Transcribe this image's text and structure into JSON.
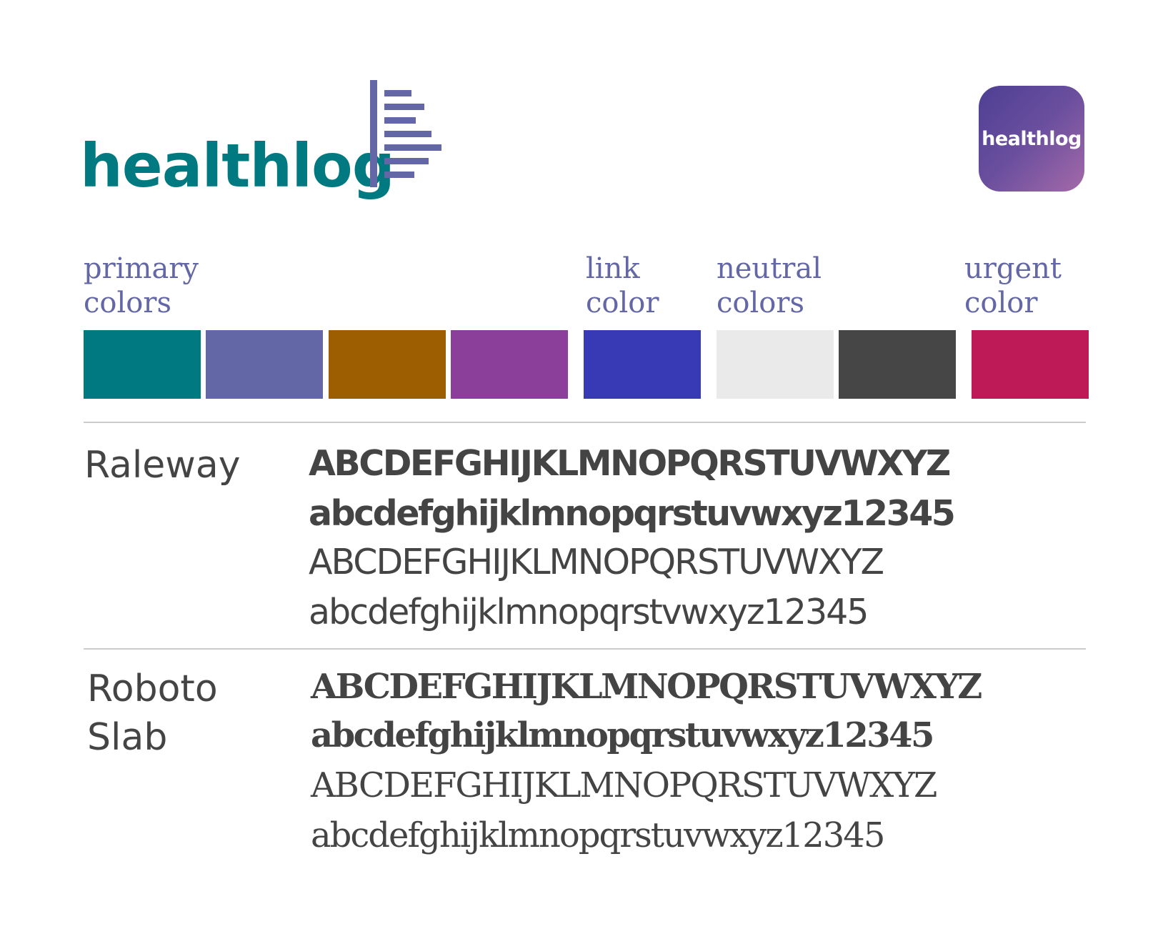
{
  "brand": {
    "wordmark": "healthlog",
    "app_icon_text": "healthlog",
    "wordmark_color": "#007a80",
    "mark_color": "#6367a6",
    "mark_icon": "bar-list-icon"
  },
  "color_groups": [
    {
      "label_line1": "primary",
      "label_line2": "colors",
      "swatches": [
        "#007a80",
        "#6367a6",
        "#9c5e00",
        "#8b3f9b"
      ]
    },
    {
      "label_line1": "link",
      "label_line2": "color",
      "swatches": [
        "#383ab5"
      ]
    },
    {
      "label_line1": "neutral",
      "label_line2": "colors",
      "swatches": [
        "#eaeaea",
        "#464646"
      ]
    },
    {
      "label_line1": "urgent",
      "label_line2": "color",
      "swatches": [
        "#bd1a57"
      ]
    }
  ],
  "fonts": [
    {
      "name_line1": "Raleway",
      "name_line2": "",
      "samples": [
        "ABCDEFGHIJKLMNOPQRSTUVWXYZ",
        "abcdefghijklmnopqrstuvwxyz12345",
        "ABCDEFGHIJKLMNOPQRSTUVWXYZ",
        "abcdefghijklmnopqrstvwxyz12345"
      ]
    },
    {
      "name_line1": "Roboto",
      "name_line2": "Slab",
      "samples": [
        "ABCDEFGHIJKLMNOPQRSTUVWXYZ",
        "abcdefghijklmnopqrstuvwxyz12345",
        "ABCDEFGHIJKLMNOPQRSTUVWXYZ",
        "abcdefghijklmnopqrstuvwxyz12345"
      ]
    }
  ]
}
